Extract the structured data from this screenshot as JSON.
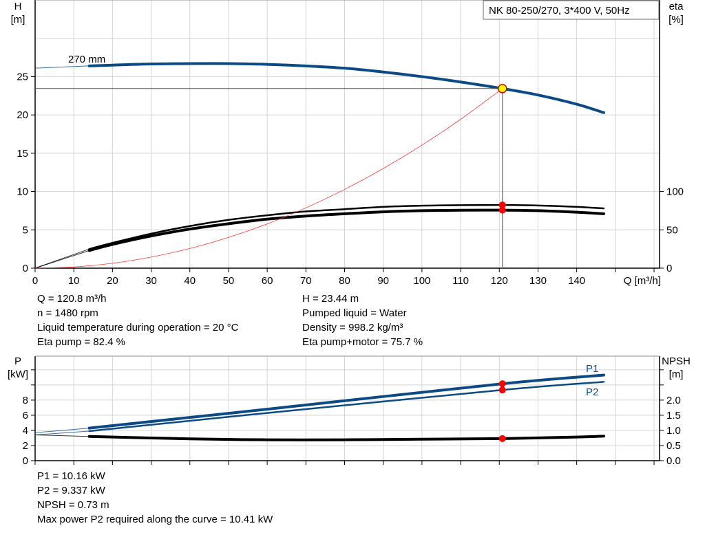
{
  "title_box": "NK 80-250/270, 3*400 V, 50Hz",
  "chart_data": [
    {
      "type": "line",
      "name": "head-efficiency",
      "x_axis": {
        "label": "Q [m³/h]",
        "range": [
          0,
          160
        ],
        "ticks": [
          0,
          10,
          20,
          30,
          40,
          50,
          60,
          70,
          80,
          90,
          100,
          110,
          120,
          130,
          140
        ]
      },
      "y_axis_left": {
        "label_line1": "H",
        "label_line2": "[m]",
        "range": [
          0,
          35
        ],
        "ticks": [
          0,
          5,
          10,
          15,
          20,
          25
        ]
      },
      "y_axis_right": {
        "label_line1": "eta",
        "label_line2": "[%]",
        "range": [
          0,
          350
        ],
        "ticks": [
          0,
          50,
          100
        ]
      },
      "grid": true,
      "impeller_label": "270 mm",
      "series": [
        {
          "key": "H",
          "color": "#0b4a85",
          "thin_until": 14,
          "x": [
            0,
            14,
            20,
            30,
            40,
            50,
            60,
            70,
            80,
            90,
            100,
            110,
            120.8,
            130,
            140,
            147
          ],
          "y": [
            26.1,
            26.4,
            26.5,
            26.65,
            26.7,
            26.7,
            26.6,
            26.4,
            26.1,
            25.6,
            25.0,
            24.3,
            23.44,
            22.6,
            21.4,
            20.3
          ]
        },
        {
          "key": "eta_pump",
          "axis": "right",
          "color": "#000000",
          "thin_until": 14,
          "x": [
            0,
            14,
            20,
            30,
            40,
            50,
            60,
            70,
            80,
            90,
            100,
            110,
            120.8,
            130,
            140,
            147
          ],
          "y": [
            0,
            25,
            33,
            45,
            55,
            63,
            69,
            74,
            77,
            80,
            81.5,
            82.2,
            82.4,
            81.8,
            80,
            78
          ]
        },
        {
          "key": "eta_pump_motor",
          "axis": "right",
          "color": "#000000",
          "thin_until": 14,
          "x": [
            0,
            14,
            20,
            30,
            40,
            50,
            60,
            70,
            80,
            90,
            100,
            110,
            120.8,
            130,
            140,
            147
          ],
          "y": [
            0,
            23,
            31,
            42,
            51,
            58,
            64,
            68,
            71,
            73.5,
            75,
            75.6,
            75.7,
            75,
            73,
            71
          ]
        },
        {
          "key": "system_curve",
          "color": "#ff3333",
          "x": [
            0,
            10,
            20,
            30,
            40,
            50,
            60,
            70,
            80,
            90,
            100,
            110,
            120.8
          ],
          "y": [
            0,
            0.16,
            0.64,
            1.45,
            2.57,
            4.02,
            5.78,
            7.87,
            10.28,
            13.01,
            16.06,
            19.43,
            23.44
          ]
        }
      ],
      "operating_point": {
        "Q": 120.8,
        "H": 23.44,
        "eta_pump": 82.4,
        "eta_pump_motor": 75.7
      }
    },
    {
      "type": "line",
      "name": "power-npsh",
      "x_axis": {
        "range": [
          0,
          160
        ]
      },
      "y_axis_left": {
        "label_line1": "P",
        "label_line2": "[kW]",
        "range": [
          0,
          14
        ],
        "ticks": [
          0,
          2,
          4,
          6,
          8
        ],
        "unlabeled_ticks": [
          10,
          12
        ]
      },
      "y_axis_right": {
        "label_line1": "NPSH",
        "label_line2": "[m]",
        "range": [
          0,
          3.5
        ],
        "ticks": [
          "0.0",
          "0.5",
          "1.0",
          "1.5",
          "2.0"
        ],
        "unlabeled_ticks": [
          2.5,
          3.0
        ]
      },
      "grid": true,
      "series": [
        {
          "key": "P1",
          "name": "P1",
          "color": "#0b4a85",
          "thin_until": 14,
          "x": [
            0,
            14,
            60,
            120.8,
            147
          ],
          "y": [
            3.7,
            4.3,
            6.8,
            10.16,
            11.3
          ]
        },
        {
          "key": "P2",
          "name": "P2",
          "color": "#0b4a85",
          "thin_until": 14,
          "x": [
            0,
            14,
            60,
            120.8,
            147
          ],
          "y": [
            3.4,
            3.9,
            6.3,
            9.337,
            10.41
          ]
        },
        {
          "key": "NPSH",
          "axis": "right",
          "color": "#000000",
          "thin_until": 14,
          "x": [
            0,
            14,
            40,
            60,
            80,
            100,
            120.8,
            140,
            147
          ],
          "y": [
            0.85,
            0.8,
            0.72,
            0.69,
            0.69,
            0.71,
            0.73,
            0.78,
            0.81
          ]
        }
      ],
      "operating_point": {
        "Q": 120.8,
        "P1": 10.16,
        "P2": 9.337,
        "NPSH": 0.73
      }
    }
  ],
  "info_top": {
    "left": [
      "Q = 120.8 m³/h",
      "n = 1480 rpm",
      "Liquid temperature during operation = 20 °C",
      "Eta pump = 82.4 %"
    ],
    "right": [
      "H = 23.44 m",
      "Pumped liquid = Water",
      "Density = 998.2 kg/m³",
      "Eta pump+motor = 75.7 %"
    ]
  },
  "info_bottom": [
    "P1 = 10.16 kW",
    "P2 = 9.337 kW",
    "NPSH = 0.73 m",
    "Max power P2 required along the curve = 10.41 kW"
  ]
}
